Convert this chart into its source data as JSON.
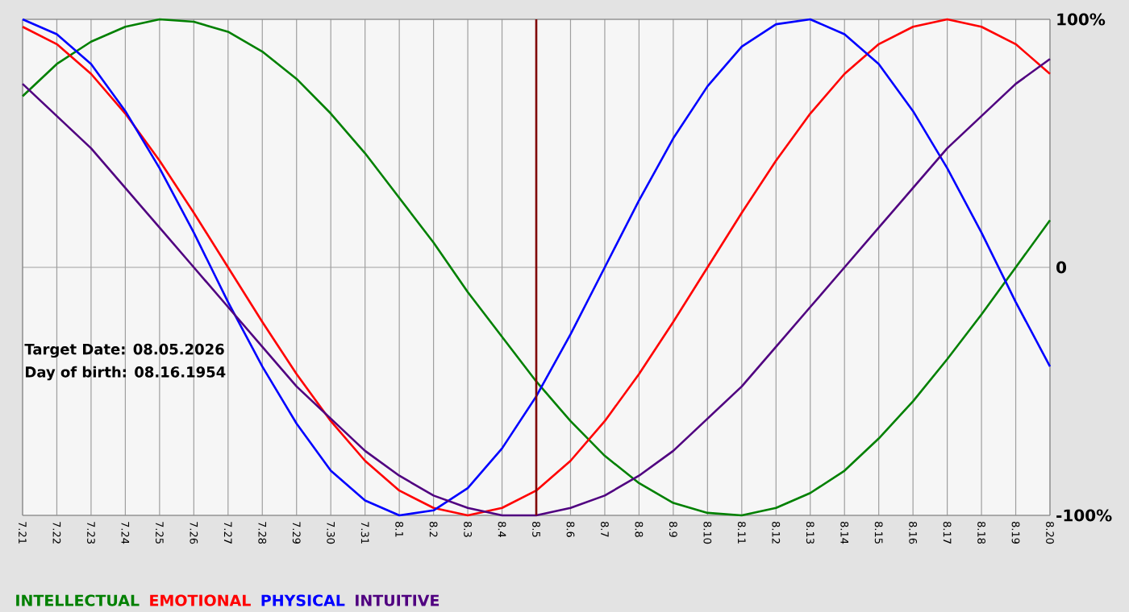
{
  "chart_data": {
    "type": "line",
    "categories": [
      "7.21",
      "7.22",
      "7.23",
      "7.24",
      "7.25",
      "7.26",
      "7.27",
      "7.28",
      "7.29",
      "7.30",
      "7.31",
      "8.1",
      "8.2",
      "8.3",
      "8.4",
      "8.5",
      "8.6",
      "8.7",
      "8.8",
      "8.9",
      "8.10",
      "8.11",
      "8.12",
      "8.13",
      "8.14",
      "8.15",
      "8.16",
      "8.17",
      "8.18",
      "8.19",
      "8.20"
    ],
    "series": [
      {
        "name": "INTELLECTUAL",
        "color": "#008000",
        "values": [
          69,
          82,
          91,
          97,
          100,
          99,
          95,
          87,
          76,
          62,
          46,
          28,
          10,
          -10,
          -28,
          -46,
          -62,
          -76,
          -87,
          -95,
          -99,
          -100,
          -97,
          -91,
          -82,
          -69,
          -54,
          -37,
          -19,
          0,
          19
        ]
      },
      {
        "name": "EMOTIONAL",
        "color": "#ff0000",
        "values": [
          97,
          90,
          78,
          62,
          43,
          22,
          0,
          -22,
          -43,
          -62,
          -78,
          -90,
          -97,
          -100,
          -97,
          -90,
          -78,
          -62,
          -43,
          -22,
          0,
          22,
          43,
          62,
          78,
          90,
          97,
          100,
          97,
          90,
          78
        ]
      },
      {
        "name": "PHYSICAL",
        "color": "#0000ff",
        "values": [
          100,
          94,
          82,
          63,
          40,
          14,
          -14,
          -40,
          -63,
          -82,
          -94,
          -100,
          -98,
          -89,
          -73,
          -52,
          -27,
          0,
          27,
          52,
          73,
          89,
          98,
          100,
          94,
          82,
          63,
          40,
          14,
          -14,
          -40
        ]
      },
      {
        "name": "INTUITIVE",
        "color": "#500080",
        "values": [
          74,
          61,
          48,
          32,
          16,
          0,
          -16,
          -32,
          -48,
          -61,
          -74,
          -84,
          -92,
          -97,
          -100,
          -100,
          -97,
          -92,
          -84,
          -74,
          -61,
          -48,
          -32,
          -16,
          0,
          16,
          32,
          48,
          61,
          74,
          84
        ]
      }
    ],
    "ylim": [
      -100,
      100
    ],
    "yticks": [
      {
        "value": -100,
        "label": "-100%"
      },
      0,
      {
        "value": 100,
        "label": "100%"
      }
    ],
    "grid": true,
    "legend": "bottom",
    "marker": "none",
    "line_style": "solid",
    "ref_lines": [
      {
        "axis": "x",
        "value": "8.5",
        "color": "#800000"
      }
    ],
    "annotations": [
      "Target Date: 08.05.2026",
      "Day of birth: 08.16.1954"
    ]
  }
}
